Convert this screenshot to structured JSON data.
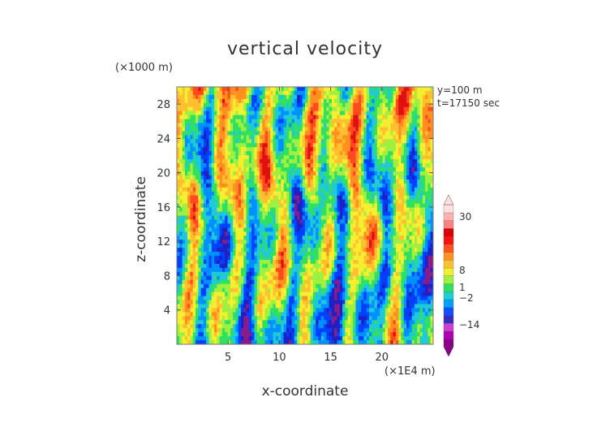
{
  "chart_data": {
    "type": "heatmap",
    "title": "vertical velocity",
    "xlabel": "x-coordinate",
    "ylabel": "z-coordinate",
    "x_unit": "(×1E4 m)",
    "y_unit": "(×1000 m)",
    "xlim": [
      0,
      25
    ],
    "ylim": [
      0,
      30
    ],
    "x_ticks": [
      "5",
      "10",
      "15",
      "20"
    ],
    "y_ticks": [
      "4",
      "8",
      "12",
      "16",
      "20",
      "24",
      "28"
    ],
    "annotations": [
      "y=100 m",
      "t=17150 sec"
    ],
    "colorbar": {
      "tick_labels": [
        "30",
        "8",
        "1",
        "−2",
        "−14"
      ],
      "colors": [
        "#8b008b",
        "#b000b0",
        "#d040d0",
        "#3030c8",
        "#1050ff",
        "#00a0ff",
        "#20d0d0",
        "#30e060",
        "#a0f040",
        "#f0f030",
        "#ffc030",
        "#ff9020",
        "#ff5020",
        "#ff1010",
        "#e00000",
        "#ff8080",
        "#ffb0b0",
        "#ffe0e0"
      ]
    }
  }
}
